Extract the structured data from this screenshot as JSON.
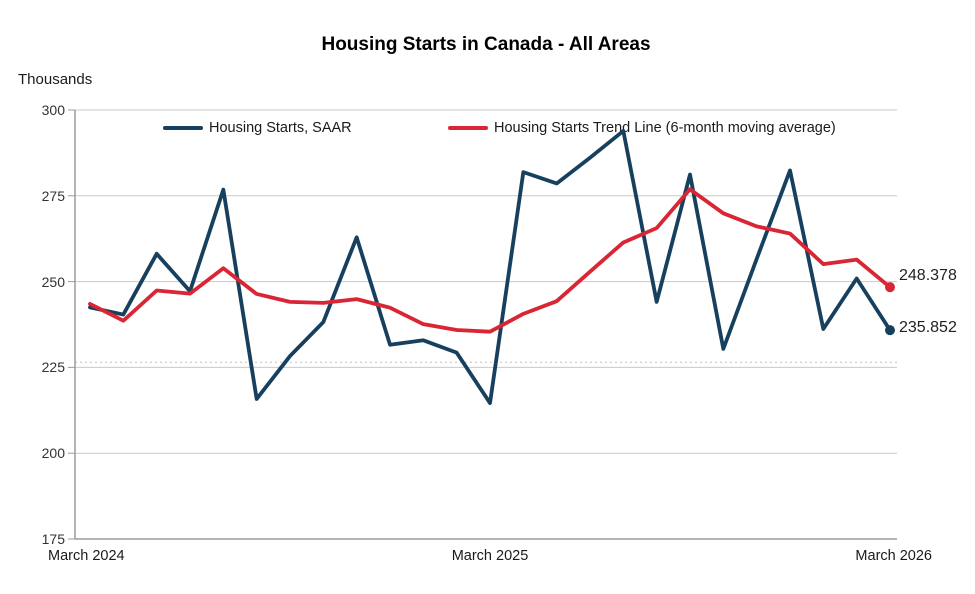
{
  "title": "Housing Starts in Canada - All Areas",
  "y_axis_unit_label": "Thousands",
  "legend": [
    {
      "label": "Housing Starts, SAAR",
      "color": "#17405F"
    },
    {
      "label": "Housing Starts Trend Line (6-month moving average)",
      "color": "#D92534"
    }
  ],
  "end_labels": {
    "trend": "248.378",
    "saar": "235.852"
  },
  "colors": {
    "saar_line": "#17405F",
    "trend_line": "#D92534",
    "gridline": "#C9C9C9",
    "axis": "#9B9B9B",
    "reference_dotted": "#C2C2C2",
    "text": "#1A1A1A"
  },
  "chart_data": {
    "type": "line",
    "title": "Housing Starts in Canada - All Areas",
    "ylabel": "Thousands",
    "ylim": [
      175,
      300
    ],
    "yticks": [
      300,
      275,
      250,
      225,
      200,
      175
    ],
    "grid": "horizontal",
    "legend_position": "top",
    "reference_line": {
      "value": 226.5,
      "style": "dotted"
    },
    "x": [
      "Mar 2024",
      "Apr 2024",
      "May 2024",
      "Jun 2024",
      "Jul 2024",
      "Aug 2024",
      "Sep 2024",
      "Oct 2024",
      "Nov 2024",
      "Dec 2024",
      "Jan 2025",
      "Feb 2025",
      "Mar 2025",
      "Apr 2025",
      "May 2025",
      "Jun 2025",
      "Jul 2025",
      "Aug 2025",
      "Sep 2025",
      "Oct 2025",
      "Nov 2025",
      "Dec 2025",
      "Jan 2026",
      "Feb 2026",
      "Mar 2026"
    ],
    "xtick_labels": [
      {
        "label": "March 2024",
        "index": 0
      },
      {
        "label": "March 2025",
        "index": 12
      },
      {
        "label": "March 2026",
        "index": 24
      }
    ],
    "series": [
      {
        "name": "Housing Starts, SAAR",
        "color": "#17405F",
        "end_marker": true,
        "values": [
          242.5,
          240.4,
          258.1,
          247.2,
          276.8,
          215.8,
          228.3,
          238.2,
          262.9,
          231.6,
          232.9,
          229.3,
          214.6,
          281.9,
          278.6,
          286.1,
          293.9,
          244.1,
          281.2,
          230.4,
          256.6,
          282.4,
          236.2,
          250.9,
          235.852
        ]
      },
      {
        "name": "Housing Starts Trend Line (6-month moving average)",
        "color": "#D92534",
        "end_marker": true,
        "values": [
          243.5,
          238.6,
          247.4,
          246.5,
          253.9,
          246.4,
          244.1,
          243.8,
          244.9,
          242.4,
          237.6,
          235.9,
          235.4,
          240.6,
          244.3,
          252.9,
          261.4,
          265.6,
          276.9,
          269.9,
          266.1,
          264.0,
          255.1,
          256.4,
          248.378
        ]
      }
    ]
  }
}
